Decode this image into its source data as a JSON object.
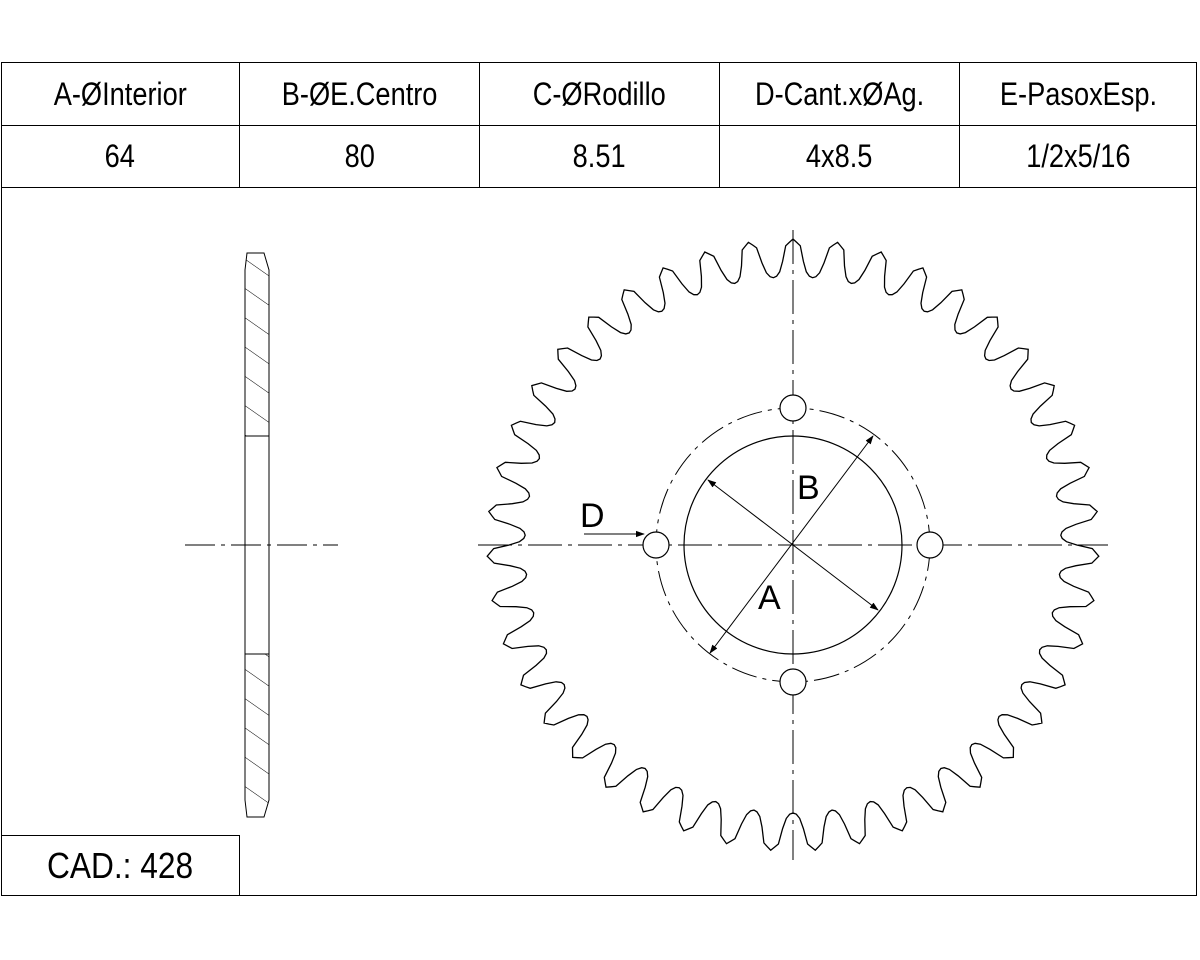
{
  "table": {
    "headers": [
      "A-ØInterior",
      "B-ØE.Centro",
      "C-ØRodillo",
      "D-Cant.xØAg.",
      "E-PasoxEsp."
    ],
    "values": [
      "64",
      "80",
      "8.51",
      "4x8.5",
      "1/2x5/16"
    ]
  },
  "cad": "CAD.: 428",
  "drawing": {
    "labels": {
      "a": "A",
      "b": "B",
      "d": "D"
    },
    "teeth": 43,
    "bolt_holes": 4
  }
}
